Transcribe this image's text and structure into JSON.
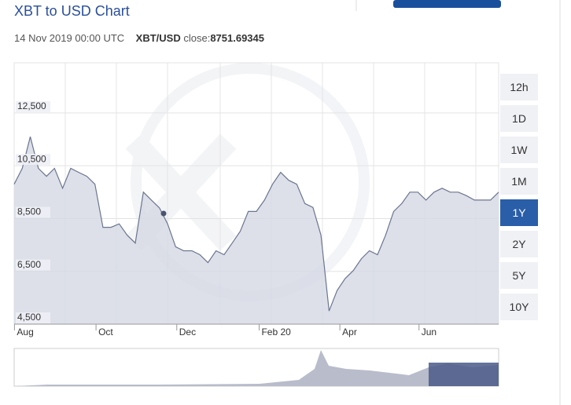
{
  "header": {
    "title": "XBT to USD Chart",
    "date": "14 Nov 2019 00:00 UTC",
    "pair": "XBT/USD",
    "close_label": "close:",
    "close_value": "8751.69345"
  },
  "range_buttons": [
    "12h",
    "1D",
    "1W",
    "1M",
    "1Y",
    "2Y",
    "5Y",
    "10Y"
  ],
  "active_range": 4,
  "chart_data": {
    "type": "line",
    "color": "#6b7590",
    "fill": "#d5d8e4",
    "values": [
      9800,
      10400,
      11600,
      10400,
      10100,
      10400,
      9650,
      10400,
      10250,
      10100,
      9800,
      8170,
      8170,
      8300,
      7870,
      7570,
      9500,
      9200,
      8900,
      8300,
      7430,
      7280,
      7280,
      7130,
      6830,
      7280,
      7130,
      7570,
      8020,
      8770,
      8770,
      9200,
      9800,
      10250,
      9950,
      9800,
      9070,
      8920,
      7870,
      5000,
      5780,
      6230,
      6530,
      6980,
      7280,
      7130,
      7870,
      8770,
      9070,
      9500,
      9500,
      9200,
      9500,
      9650,
      9500,
      9500,
      9370,
      9200,
      9200,
      9200,
      9500
    ],
    "xticks": [
      {
        "value": 1.5,
        "label": "Aug"
      },
      {
        "value": 11.6,
        "label": "Oct"
      },
      {
        "value": 21.6,
        "label": "Dec"
      },
      {
        "value": 31.8,
        "label": "Feb 20"
      },
      {
        "value": 41.8,
        "label": "Apr"
      },
      {
        "value": 51.6,
        "label": "Jun"
      }
    ],
    "ylim": [
      4500,
      14400
    ],
    "yticks": [
      {
        "value": 4500,
        "label": "4,500"
      },
      {
        "value": 6500,
        "label": "6,500"
      },
      {
        "value": 8500,
        "label": "8,500"
      },
      {
        "value": 10500,
        "label": "10,500"
      },
      {
        "value": 12500,
        "label": "12,500"
      }
    ],
    "grid": true
  }
}
